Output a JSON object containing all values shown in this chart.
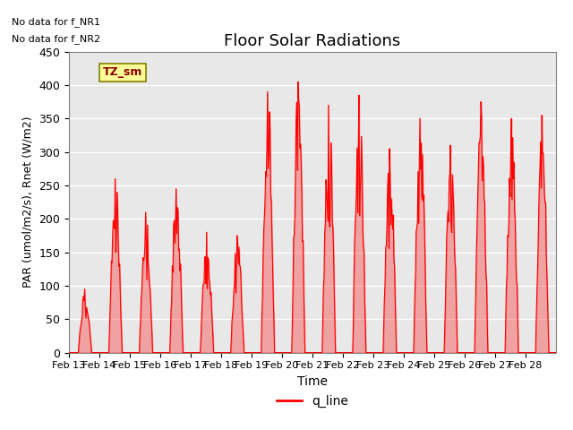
{
  "title": "Floor Solar Radiations",
  "xlabel": "Time",
  "ylabel": "PAR (umol/m2/s), Rnet (W/m2)",
  "ylim": [
    0,
    450
  ],
  "yticks": [
    0,
    50,
    100,
    150,
    200,
    250,
    300,
    350,
    400,
    450
  ],
  "xtick_labels": [
    "Feb 13",
    "Feb 14",
    "Feb 15",
    "Feb 16",
    "Feb 17",
    "Feb 18",
    "Feb 19",
    "Feb 20",
    "Feb 21",
    "Feb 22",
    "Feb 23",
    "Feb 24",
    "Feb 25",
    "Feb 26",
    "Feb 27",
    "Feb 28"
  ],
  "note1": "No data for f_NR1",
  "note2": "No data for f_NR2",
  "legend_label": "q_line",
  "legend_color": "red",
  "box_label": "TZ_sm",
  "box_facecolor": "#FFFF99",
  "line_color": "red",
  "bg_color": "#e8e8e8",
  "grid_color": "white",
  "num_days": 16,
  "daily_peaks": [
    95,
    260,
    210,
    245,
    180,
    175,
    390,
    405,
    370,
    385,
    305,
    350,
    310,
    375,
    350,
    355
  ]
}
